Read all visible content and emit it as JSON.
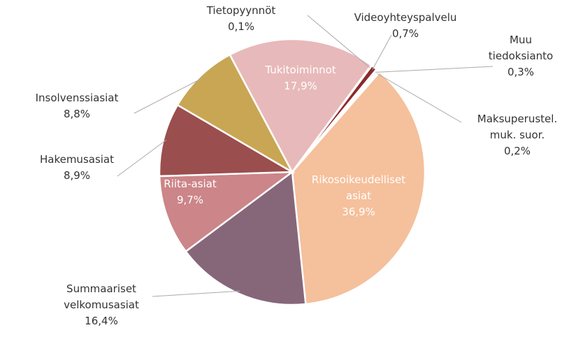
{
  "chart_data": {
    "type": "pie",
    "categories": [
      "Tietopyynnöt",
      "Videoyhteyspalvelu",
      "Muu\ntiedoksianto",
      "Maksuperustel.\nmuk. suor.",
      "Rikosoikeudelliset\nasiat",
      "Summaariset\nvelkomusasiat",
      "Riita-asiat",
      "Hakemusasiat",
      "Insolvenssiasiat",
      "Tukitoiminnot"
    ],
    "values": [
      0.1,
      0.7,
      0.3,
      0.2,
      36.9,
      16.4,
      9.7,
      8.9,
      8.8,
      17.9
    ],
    "value_labels": [
      "0,1%",
      "0,7%",
      "0,3%",
      "0,2%",
      "36,9%",
      "16,4%",
      "9,7%",
      "8,9%",
      "8,8%",
      "17,9%"
    ],
    "colors": [
      "#c9c9c9",
      "#8b2a2a",
      "#f2f2f2",
      "#e6d3c8",
      "#f5c09c",
      "#86677a",
      "#cc8588",
      "#9b4e4e",
      "#c8a654",
      "#e8b9ba"
    ]
  }
}
